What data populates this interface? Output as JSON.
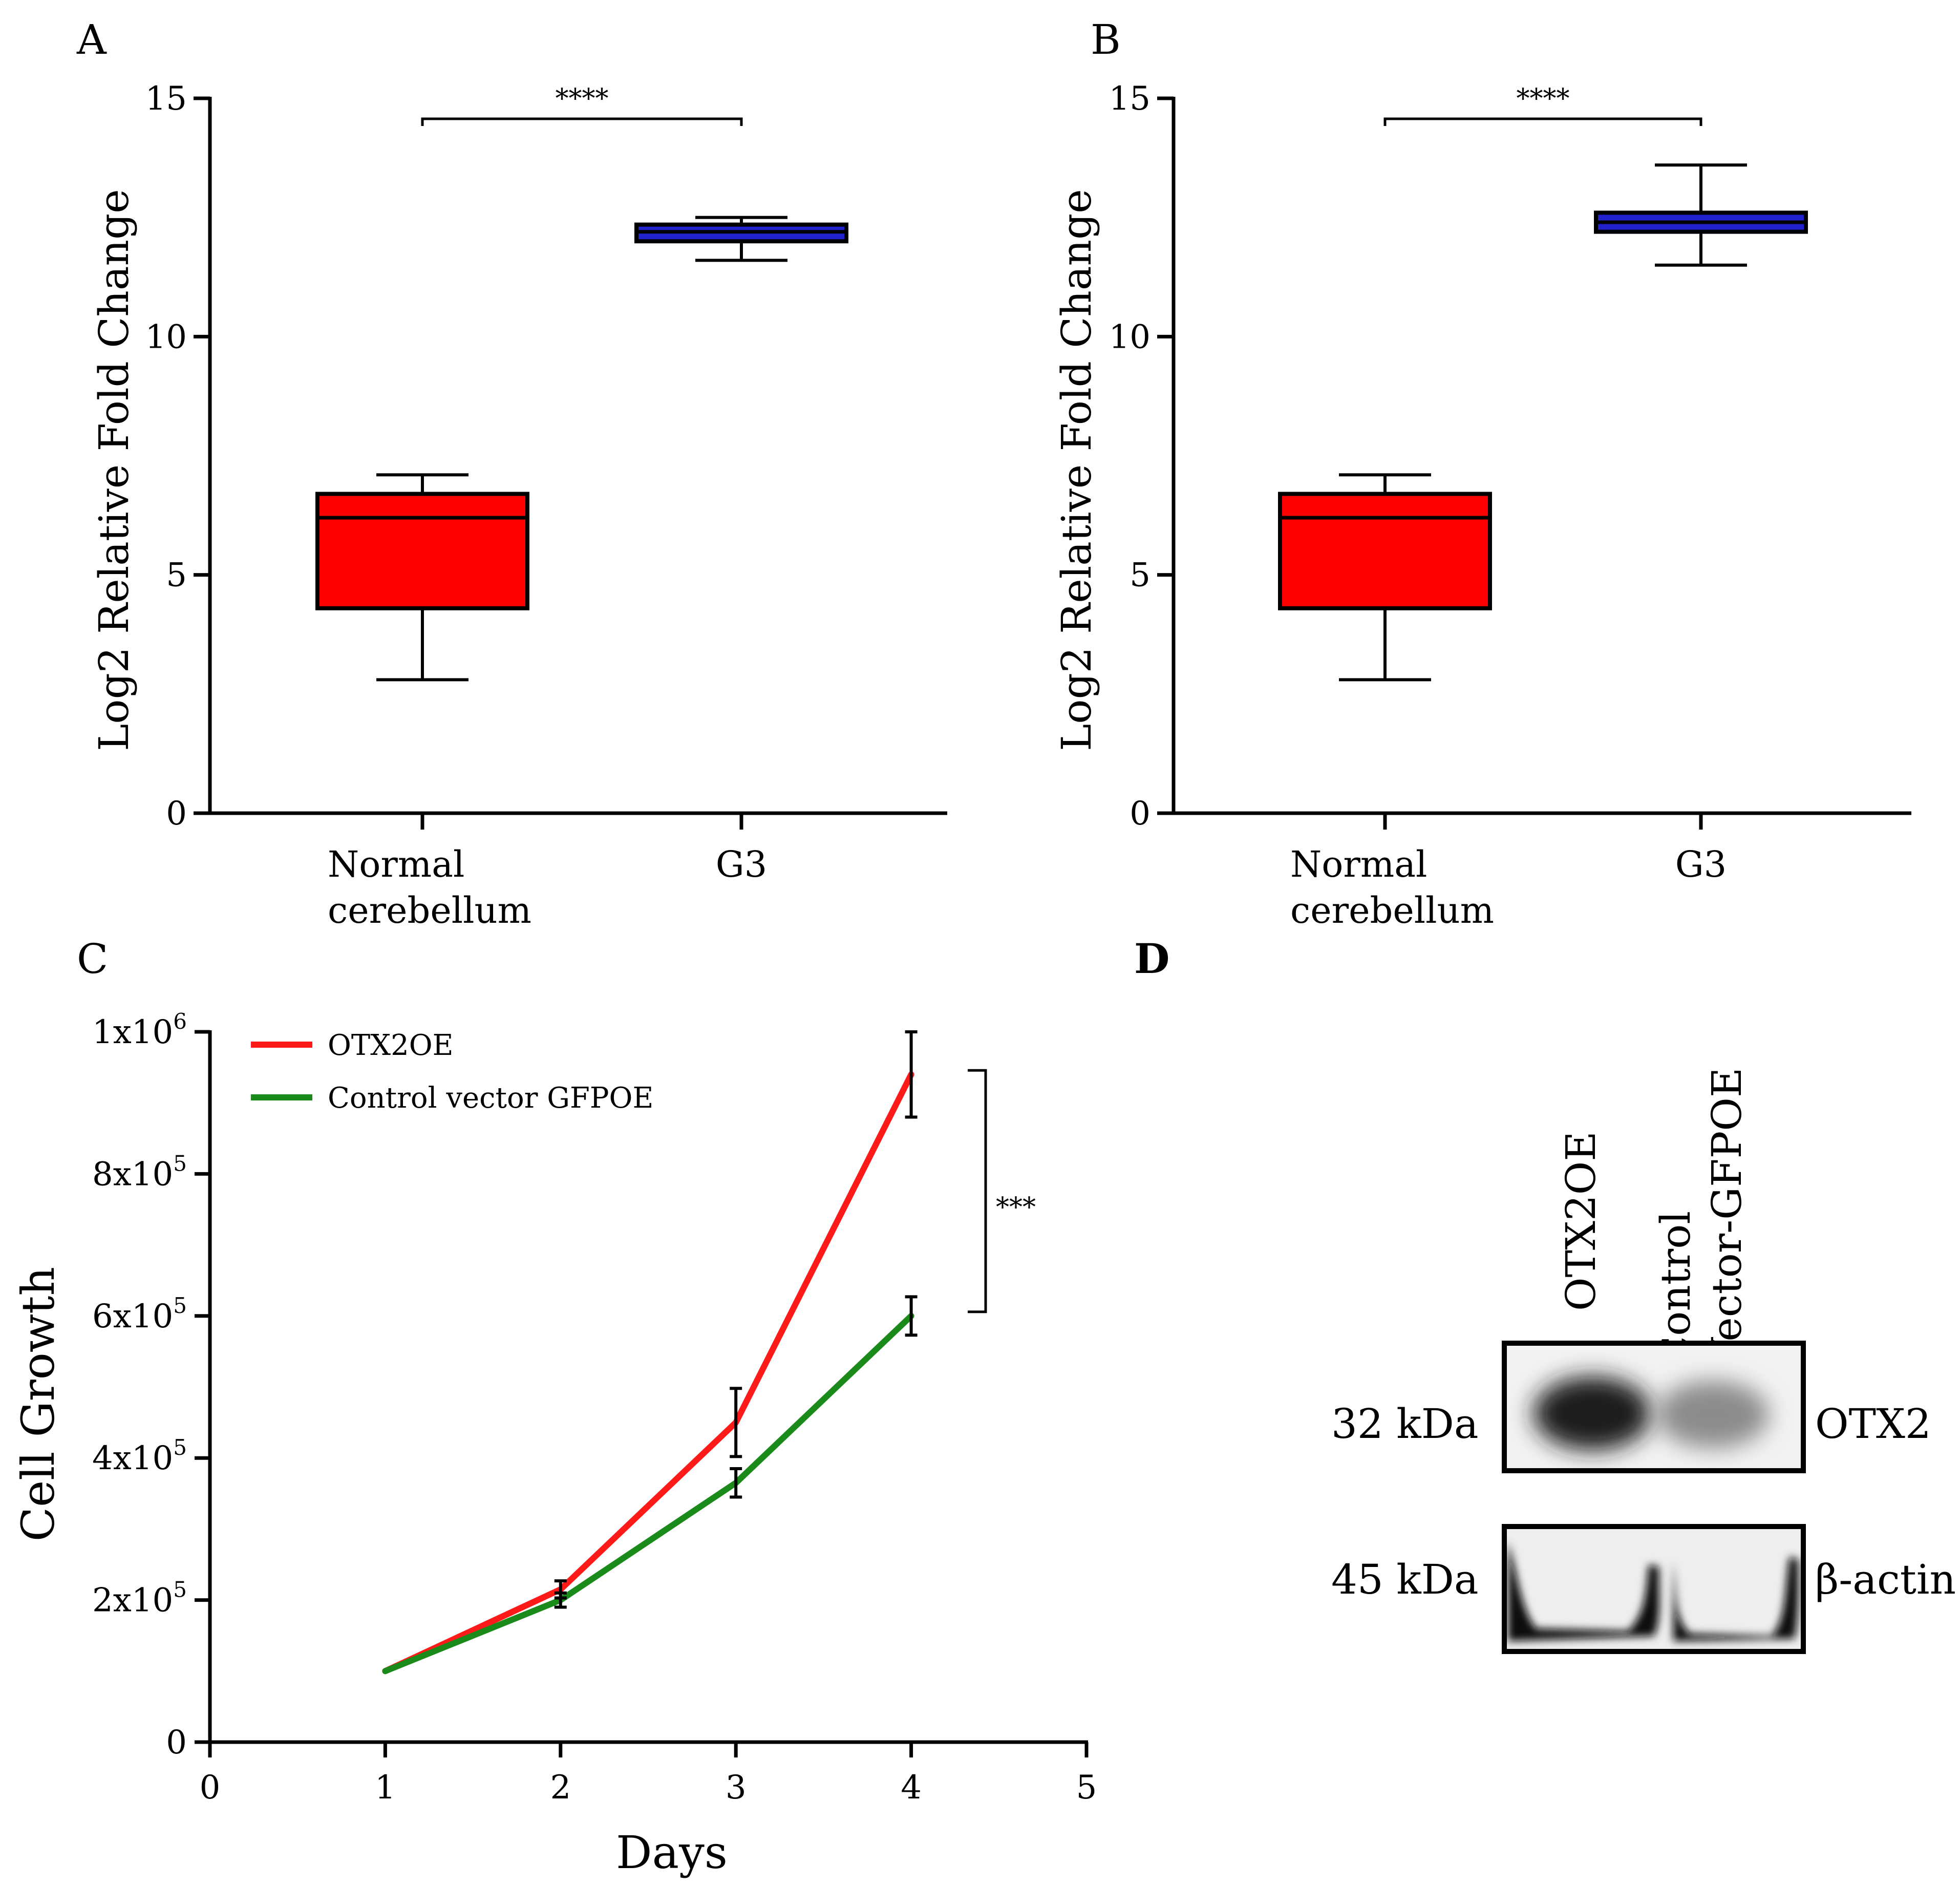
{
  "chart_data": [
    {
      "panel": "A",
      "type": "box",
      "ylabel": "Log2 Relative Fold Change",
      "ylim": [
        0,
        15
      ],
      "yticks": [
        "0",
        "5",
        "10",
        "15"
      ],
      "categories": [
        {
          "label_lines": [
            "Normal",
            "cerebellum"
          ],
          "min": 2.8,
          "q1": 4.3,
          "median": 6.2,
          "q3": 6.7,
          "max": 7.1,
          "color": "#ff0000"
        },
        {
          "label_lines": [
            "G3"
          ],
          "min": 11.6,
          "q1": 12.0,
          "median": 12.2,
          "q3": 12.35,
          "max": 12.5,
          "color": "#2222cc"
        }
      ],
      "significance": "****"
    },
    {
      "panel": "B",
      "type": "box",
      "ylabel": "Log2 Relative Fold Change",
      "ylim": [
        0,
        15
      ],
      "yticks": [
        "0",
        "5",
        "10",
        "15"
      ],
      "categories": [
        {
          "label_lines": [
            "Normal",
            "cerebellum"
          ],
          "min": 2.8,
          "q1": 4.3,
          "median": 6.2,
          "q3": 6.7,
          "max": 7.1,
          "color": "#ff0000"
        },
        {
          "label_lines": [
            "G3"
          ],
          "min": 11.5,
          "q1": 12.2,
          "median": 12.4,
          "q3": 12.6,
          "max": 13.6,
          "color": "#2222cc"
        }
      ],
      "significance": "****"
    },
    {
      "panel": "C",
      "type": "line",
      "xlabel": "Days",
      "ylabel": "Cell Growth",
      "xlim": [
        0,
        5
      ],
      "ylim": [
        0,
        1000000
      ],
      "xticks": [
        "0",
        "1",
        "2",
        "3",
        "4",
        "5"
      ],
      "yticks": [
        {
          "mantissa": "0",
          "exp": ""
        },
        {
          "mantissa": "2x10",
          "exp": "5"
        },
        {
          "mantissa": "4x10",
          "exp": "5"
        },
        {
          "mantissa": "6x10",
          "exp": "5"
        },
        {
          "mantissa": "8x10",
          "exp": "5"
        },
        {
          "mantissa": "1x10",
          "exp": "6"
        }
      ],
      "x": [
        1,
        2,
        3,
        4
      ],
      "series": [
        {
          "name": "OTX2OE",
          "color": "#ff1a1a",
          "values": [
            100000,
            215000,
            450000,
            940000
          ],
          "errors": [
            0,
            12000,
            48000,
            60000
          ]
        },
        {
          "name": "Control vector GFPOE",
          "color": "#1a8a1a",
          "values": [
            100000,
            200000,
            365000,
            600000
          ],
          "errors": [
            0,
            10000,
            20000,
            27000
          ]
        }
      ],
      "significance": "***"
    },
    {
      "panel": "D",
      "type": "western-blot",
      "lanes": [
        "OTX2OE",
        "Control|Vector-GFPOE"
      ],
      "bands": [
        {
          "mw": "32 kDa",
          "protein": "OTX2"
        },
        {
          "mw": "45 kDa",
          "protein": "β-actin"
        }
      ]
    }
  ]
}
